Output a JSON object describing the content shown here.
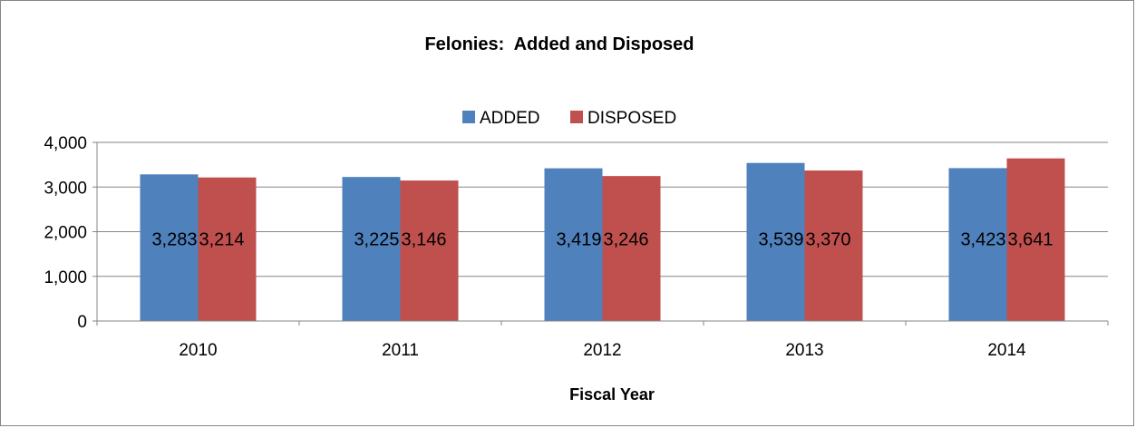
{
  "chart_data": {
    "type": "bar",
    "title": "Felonies:  Added and Disposed",
    "xlabel": "Fiscal Year",
    "ylabel": "",
    "categories": [
      "2010",
      "2011",
      "2012",
      "2013",
      "2014"
    ],
    "series": [
      {
        "name": "ADDED",
        "color": "#4F81BD",
        "values": [
          3283,
          3225,
          3419,
          3539,
          3423
        ],
        "labels": [
          "3,283",
          "3,225",
          "3,419",
          "3,539",
          "3,423"
        ]
      },
      {
        "name": "DISPOSED",
        "color": "#C0504D",
        "values": [
          3214,
          3146,
          3246,
          3370,
          3641
        ],
        "labels": [
          "3,214",
          "3,146",
          "3,246",
          "3,370",
          "3,641"
        ]
      }
    ],
    "ylim": [
      0,
      4000
    ],
    "yticks": [
      0,
      1000,
      2000,
      3000,
      4000
    ],
    "ytick_labels": [
      "0",
      "1,000",
      "2,000",
      "3,000",
      "4,000"
    ],
    "legend_position": "top",
    "grid": true
  }
}
